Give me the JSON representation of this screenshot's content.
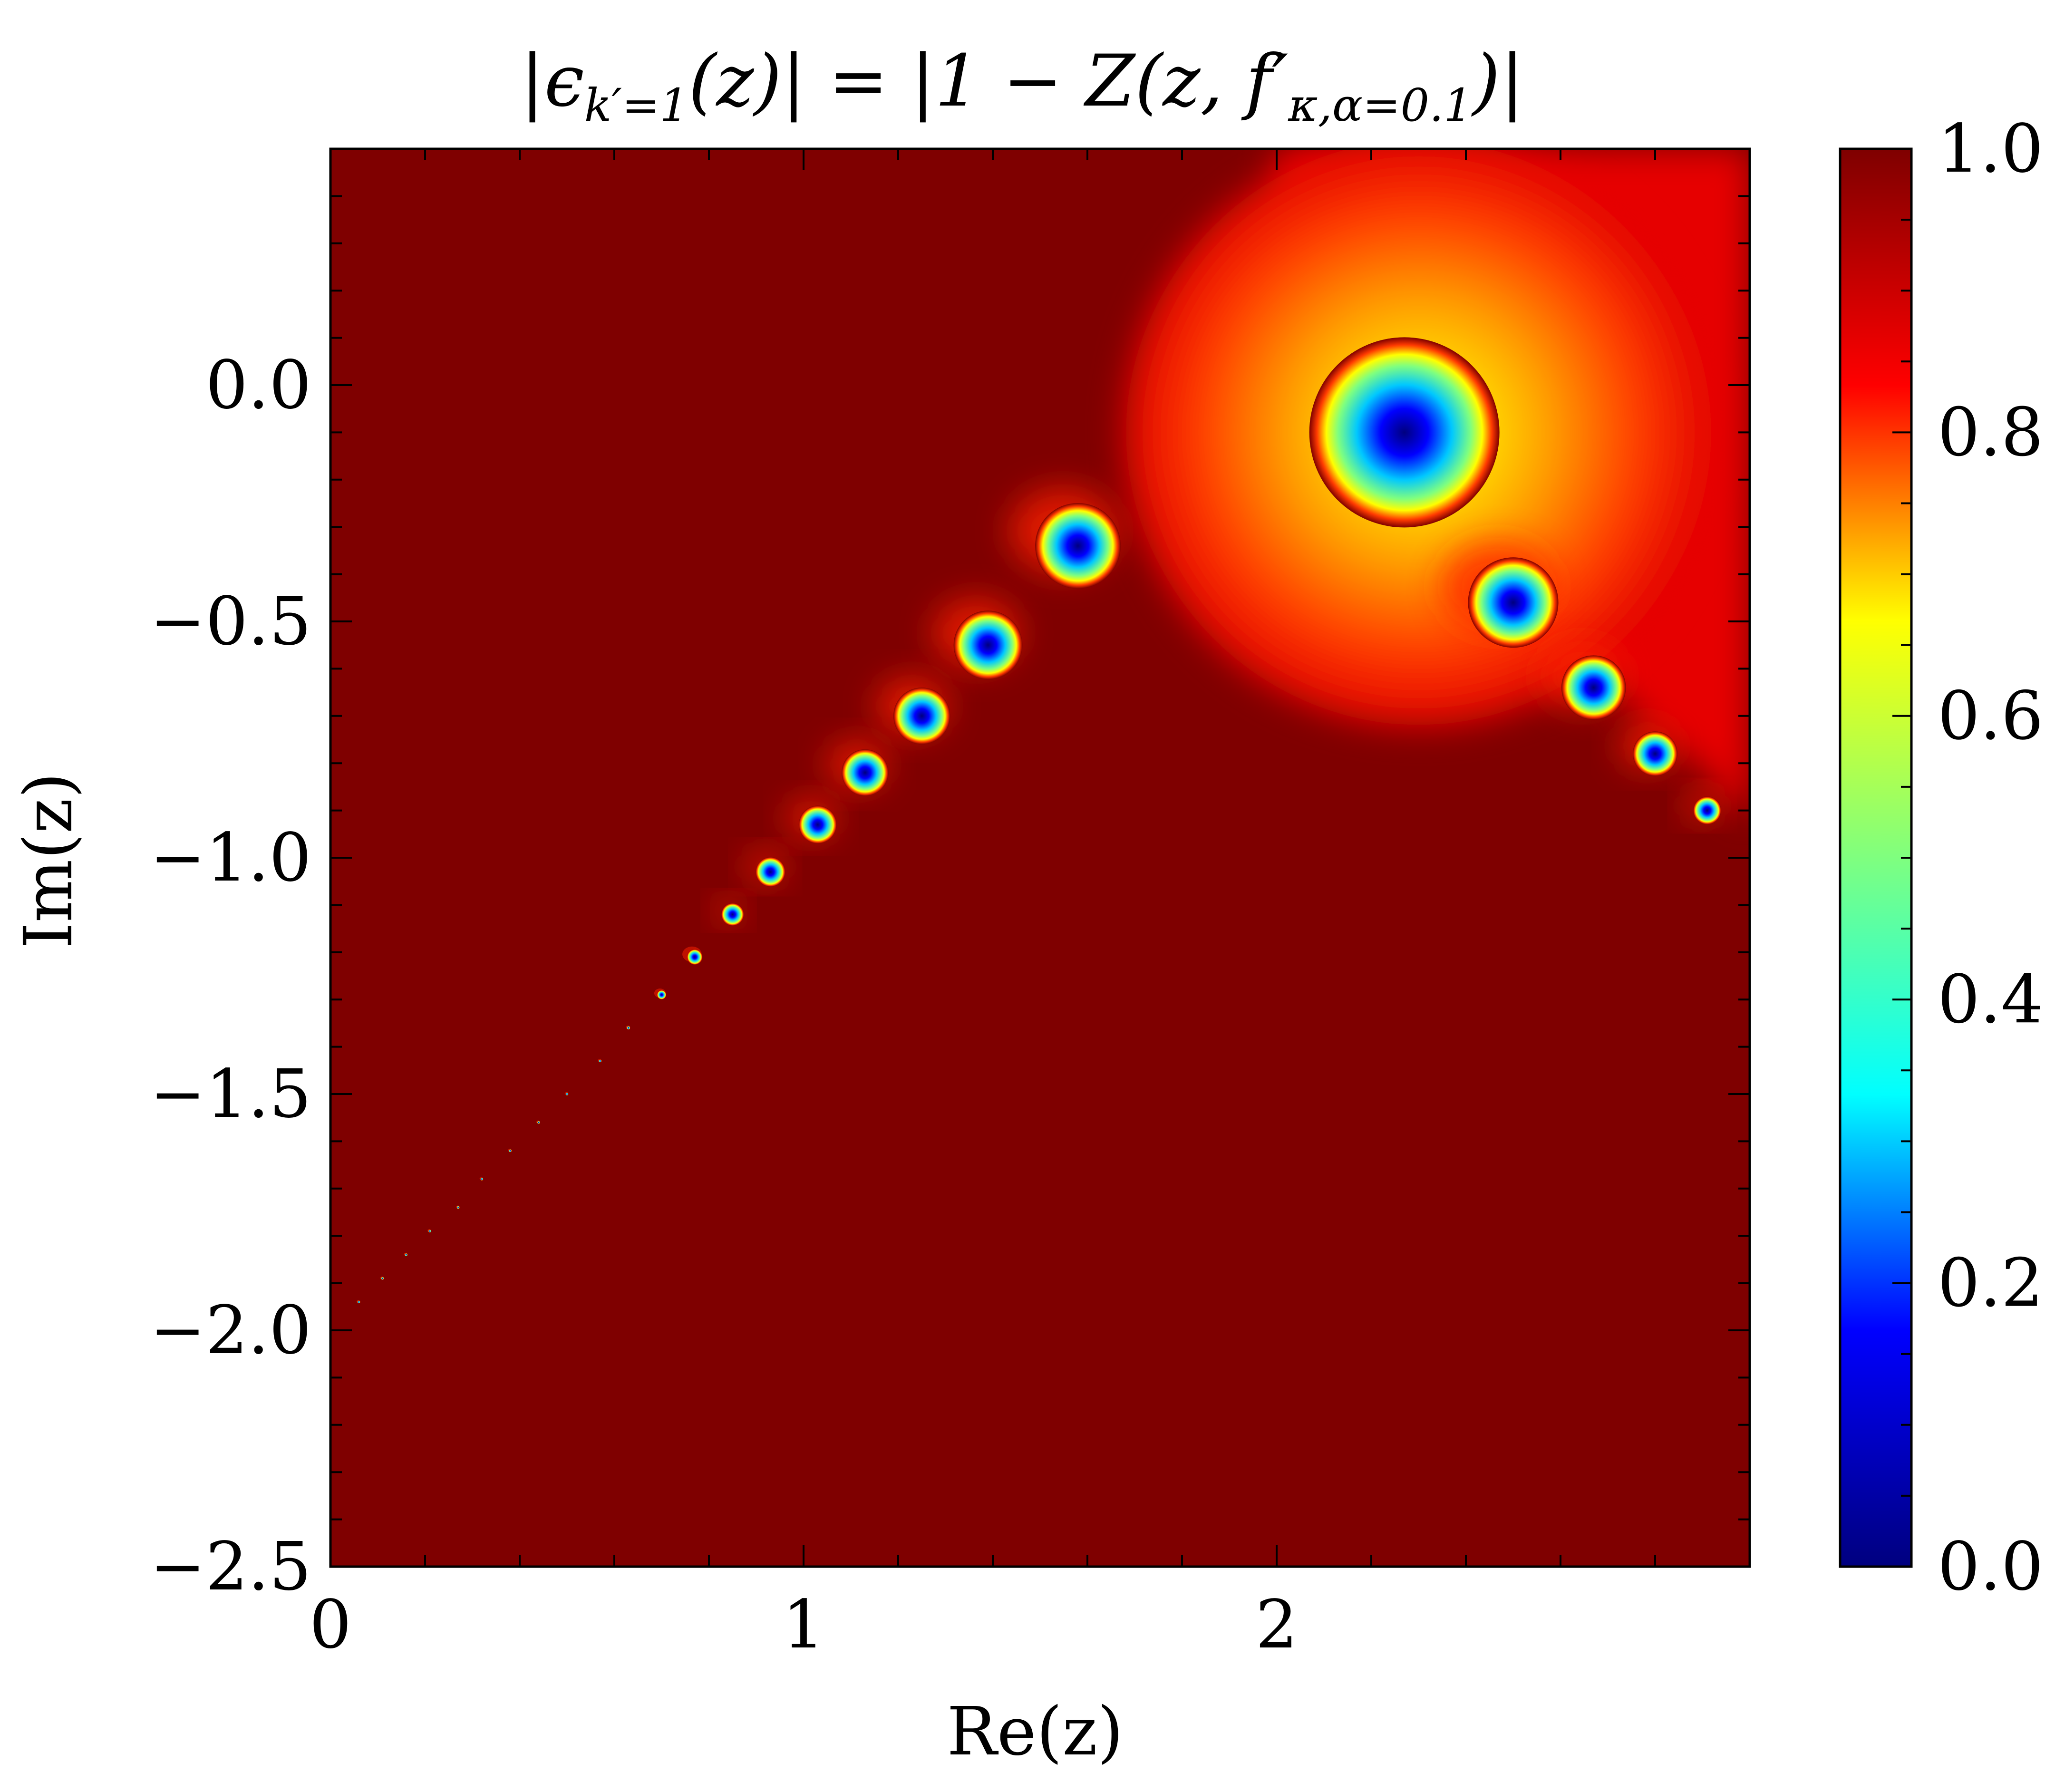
{
  "chart_data": {
    "type": "heatmap",
    "title": "|ϵ_{k′=1}(z)| = |1 − Z(z, f′_{κ,α=0.1})|",
    "title_parts": {
      "lhs_open": "|ϵ",
      "lhs_sub": "k′=1",
      "lhs_close": "(z)| = |1 − Z(z, f′",
      "rhs_sub": "κ,α=0.1",
      "rhs_close": ")|"
    },
    "xlabel": "Re(z)",
    "ylabel": "Im(z)",
    "xlim": [
      0,
      3.0
    ],
    "ylim": [
      -2.5,
      0.5
    ],
    "x_ticks": [
      {
        "value": 0,
        "label": "0"
      },
      {
        "value": 1,
        "label": "1"
      },
      {
        "value": 2,
        "label": "2"
      }
    ],
    "y_ticks": [
      {
        "value": 0.0,
        "label": "0.0"
      },
      {
        "value": -0.5,
        "label": "−0.5"
      },
      {
        "value": -1.0,
        "label": "−1.0"
      },
      {
        "value": -1.5,
        "label": "−1.5"
      },
      {
        "value": -2.0,
        "label": "−2.0"
      },
      {
        "value": -2.5,
        "label": "−2.5"
      }
    ],
    "colorbar": {
      "colormap": "jet",
      "range": [
        0.0,
        1.0
      ],
      "ticks": [
        {
          "value": 0.0,
          "label": "0.0"
        },
        {
          "value": 0.2,
          "label": "0.2"
        },
        {
          "value": 0.4,
          "label": "0.4"
        },
        {
          "value": 0.6,
          "label": "0.6"
        },
        {
          "value": 0.8,
          "label": "0.8"
        },
        {
          "value": 1.0,
          "label": "1.0"
        }
      ],
      "stops": [
        "#00007f",
        "#0000ff",
        "#00ffff",
        "#7fff7f",
        "#ffff00",
        "#ff0000",
        "#7f0000"
      ]
    },
    "background_value": 1.0,
    "background_color": "#7f0000",
    "diffuse_region": {
      "description_value_range": [
        0.6,
        0.95
      ],
      "center": [
        2.3,
        -0.1
      ]
    },
    "minima": [
      {
        "x": 2.27,
        "y": -0.1,
        "value": 0.0
      },
      {
        "x": 1.58,
        "y": -0.34,
        "value": 0.0
      },
      {
        "x": 1.39,
        "y": -0.55,
        "value": 0.0
      },
      {
        "x": 1.25,
        "y": -0.7,
        "value": 0.0
      },
      {
        "x": 1.13,
        "y": -0.82,
        "value": 0.0
      },
      {
        "x": 1.03,
        "y": -0.93,
        "value": 0.0
      },
      {
        "x": 0.93,
        "y": -1.03,
        "value": 0.0
      },
      {
        "x": 0.85,
        "y": -1.12,
        "value": 0.0
      },
      {
        "x": 0.77,
        "y": -1.21,
        "value": 0.0
      },
      {
        "x": 0.7,
        "y": -1.29,
        "value": 0.0
      },
      {
        "x": 0.63,
        "y": -1.36,
        "value": 0.0
      },
      {
        "x": 0.57,
        "y": -1.43,
        "value": 0.0
      },
      {
        "x": 0.5,
        "y": -1.5,
        "value": 0.0
      },
      {
        "x": 0.44,
        "y": -1.56,
        "value": 0.0
      },
      {
        "x": 0.38,
        "y": -1.62,
        "value": 0.0
      },
      {
        "x": 0.32,
        "y": -1.68,
        "value": 0.0
      },
      {
        "x": 0.27,
        "y": -1.74,
        "value": 0.0
      },
      {
        "x": 0.21,
        "y": -1.79,
        "value": 0.0
      },
      {
        "x": 0.16,
        "y": -1.84,
        "value": 0.0
      },
      {
        "x": 0.11,
        "y": -1.89,
        "value": 0.0
      },
      {
        "x": 0.06,
        "y": -1.94,
        "value": 0.0
      },
      {
        "x": 2.5,
        "y": -0.46,
        "value": 0.0
      },
      {
        "x": 2.67,
        "y": -0.64,
        "value": 0.0
      },
      {
        "x": 2.8,
        "y": -0.78,
        "value": 0.0
      },
      {
        "x": 2.91,
        "y": -0.9,
        "value": 0.0
      }
    ],
    "grid": false
  }
}
